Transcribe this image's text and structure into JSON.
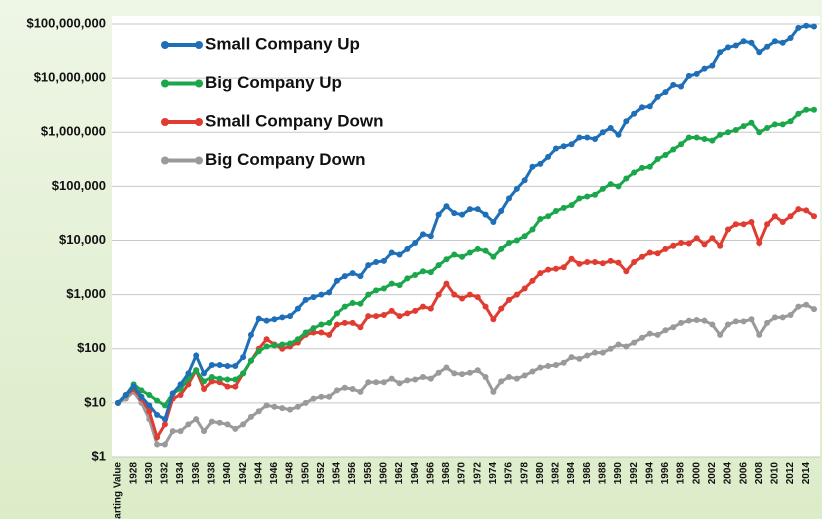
{
  "chart_data": {
    "type": "line",
    "log_scale": true,
    "grid": true,
    "legend": "upper left",
    "categories": [
      "Starting Value",
      null,
      "1928",
      null,
      "1930",
      null,
      "1932",
      null,
      "1934",
      null,
      "1936",
      null,
      "1938",
      null,
      "1940",
      null,
      "1942",
      null,
      "1944",
      null,
      "1946",
      null,
      "1948",
      null,
      "1950",
      null,
      "1952",
      null,
      "1954",
      null,
      "1956",
      null,
      "1958",
      null,
      "1960",
      null,
      "1962",
      null,
      "1964",
      null,
      "1966",
      null,
      "1968",
      null,
      "1970",
      null,
      "1972",
      null,
      "1974",
      null,
      "1976",
      null,
      "1978",
      null,
      "1980",
      null,
      "1982",
      null,
      "1984",
      null,
      "1986",
      null,
      "1988",
      null,
      "1990",
      null,
      "1992",
      null,
      "1994",
      null,
      "1996",
      null,
      "1998",
      null,
      "2000",
      null,
      "2002",
      null,
      "2004",
      null,
      "2006",
      null,
      "2008",
      null,
      "2010",
      null,
      "2012",
      null,
      "2014",
      null
    ],
    "ylim": [
      1,
      100000000
    ],
    "yticks": [
      {
        "value": 1,
        "label": "$1"
      },
      {
        "value": 10,
        "label": "$10"
      },
      {
        "value": 100,
        "label": "$100"
      },
      {
        "value": 1000,
        "label": "$1,000"
      },
      {
        "value": 10000,
        "label": "$10,000"
      },
      {
        "value": 100000,
        "label": "$100,000"
      },
      {
        "value": 1000000,
        "label": "$1,000,000"
      },
      {
        "value": 10000000,
        "label": "$10,000,000"
      },
      {
        "value": 100000000,
        "label": "$100,000,000"
      }
    ],
    "series": [
      {
        "name": "Small Company Up",
        "color": "#1f6fb8",
        "values": [
          10,
          14,
          20,
          13,
          9,
          6,
          5,
          15,
          22,
          35,
          75,
          35,
          50,
          50,
          48,
          48,
          70,
          180,
          360,
          330,
          350,
          380,
          400,
          550,
          800,
          900,
          1000,
          1100,
          1800,
          2200,
          2500,
          2200,
          3500,
          4000,
          4200,
          6000,
          5500,
          7000,
          9000,
          13000,
          12000,
          30000,
          43000,
          32000,
          30000,
          38000,
          38000,
          30000,
          22000,
          35000,
          60000,
          90000,
          130000,
          230000,
          260000,
          350000,
          500000,
          550000,
          600000,
          800000,
          800000,
          750000,
          1000000,
          1200000,
          900000,
          1600000,
          2200000,
          2900000,
          3000000,
          4500000,
          5500000,
          7500000,
          7000000,
          11000000,
          12000000,
          15000000,
          17000000,
          30000000,
          37000000,
          40000000,
          48000000,
          45000000,
          30000000,
          38000000,
          48000000,
          45000000,
          55000000,
          85000000,
          93000000,
          90000000
        ]
      },
      {
        "name": "Big Company Up",
        "color": "#1aa64a",
        "values": [
          10,
          14,
          22,
          17,
          14,
          11,
          9,
          15,
          18,
          28,
          40,
          25,
          30,
          28,
          27,
          27,
          35,
          60,
          90,
          110,
          115,
          120,
          125,
          150,
          200,
          240,
          280,
          300,
          450,
          600,
          700,
          680,
          1000,
          1200,
          1300,
          1600,
          1500,
          2000,
          2300,
          2700,
          2600,
          3500,
          4500,
          5500,
          5000,
          6000,
          7000,
          6500,
          5000,
          7000,
          9000,
          10000,
          12000,
          16000,
          25000,
          28000,
          35000,
          40000,
          45000,
          60000,
          65000,
          70000,
          90000,
          110000,
          100000,
          140000,
          180000,
          220000,
          230000,
          320000,
          380000,
          480000,
          600000,
          800000,
          800000,
          750000,
          700000,
          900000,
          1000000,
          1100000,
          1300000,
          1500000,
          1000000,
          1200000,
          1400000,
          1400000,
          1600000,
          2200000,
          2600000,
          2600000
        ]
      },
      {
        "name": "Small Company Down",
        "color": "#e03c31",
        "values": [
          10,
          14,
          18,
          12,
          7,
          2.3,
          4,
          12,
          14,
          22,
          40,
          18,
          25,
          24,
          20,
          20,
          35,
          60,
          100,
          150,
          120,
          100,
          110,
          130,
          180,
          200,
          200,
          180,
          280,
          300,
          300,
          250,
          400,
          400,
          420,
          500,
          400,
          450,
          500,
          600,
          550,
          1000,
          1600,
          1000,
          850,
          1000,
          900,
          600,
          350,
          550,
          800,
          1000,
          1300,
          1800,
          2500,
          2900,
          3000,
          3200,
          4600,
          3700,
          4000,
          4000,
          3800,
          4200,
          3900,
          2700,
          4000,
          5000,
          6000,
          5800,
          7000,
          8000,
          9000,
          8800,
          11000,
          8500,
          11000,
          8000,
          16000,
          20000,
          20000,
          22000,
          9000,
          20000,
          28000,
          22000,
          28000,
          38000,
          36000,
          28000
        ]
      },
      {
        "name": "Big Company Down",
        "color": "#9a9a9a",
        "values": [
          10,
          12,
          16,
          10,
          5,
          1.7,
          1.7,
          3,
          3,
          4,
          5,
          3,
          4.5,
          4.3,
          4,
          3.3,
          4,
          5.5,
          7,
          9,
          8.5,
          8,
          7.5,
          8.5,
          10,
          12,
          13,
          13,
          17,
          19,
          18,
          16,
          24,
          24,
          24,
          28,
          23,
          26,
          27,
          30,
          28,
          36,
          45,
          35,
          34,
          36,
          40,
          30,
          16,
          25,
          30,
          28,
          32,
          38,
          45,
          48,
          50,
          55,
          70,
          65,
          75,
          85,
          85,
          100,
          120,
          110,
          130,
          160,
          190,
          180,
          220,
          250,
          300,
          330,
          340,
          330,
          280,
          180,
          280,
          320,
          320,
          350,
          180,
          300,
          380,
          380,
          420,
          600,
          650,
          540
        ]
      }
    ]
  }
}
